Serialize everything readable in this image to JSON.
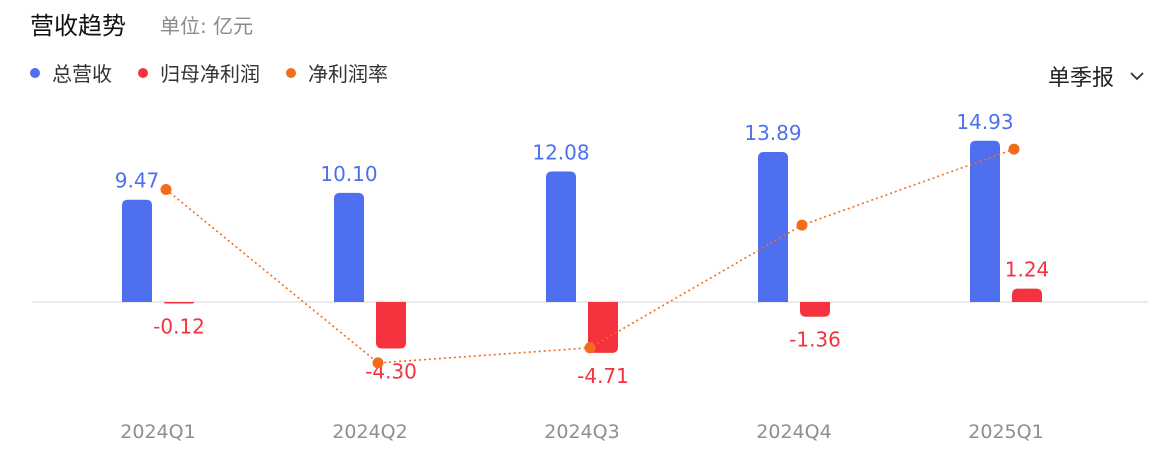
{
  "header": {
    "title": "营收趋势",
    "unit": "单位: 亿元"
  },
  "period_selector": {
    "label": "单季报"
  },
  "colors": {
    "revenue": "#4d6ff0",
    "net_profit": "#f5333f",
    "margin": "#f36c1b",
    "axis": "#e3e3e3",
    "tick": "#8f8f8f"
  },
  "chart_data": {
    "type": "bar",
    "categories": [
      "2024Q1",
      "2024Q2",
      "2024Q3",
      "2024Q4",
      "2025Q1"
    ],
    "series": [
      {
        "name": "总营收",
        "type": "bar",
        "values": [
          9.47,
          10.1,
          12.08,
          13.89,
          14.93
        ],
        "labels": [
          "9.47",
          "10.10",
          "12.08",
          "13.89",
          "14.93"
        ]
      },
      {
        "name": "归母净利润",
        "type": "bar",
        "values": [
          -0.12,
          -4.3,
          -4.71,
          -1.36,
          1.24
        ],
        "labels": [
          "-0.12",
          "-4.30",
          "-4.71",
          "-1.36",
          "1.24"
        ]
      },
      {
        "name": "净利润率",
        "type": "line",
        "values": [
          -1.3,
          -42.6,
          -39.0,
          -9.8,
          8.3
        ]
      }
    ],
    "legend_position": "top-left"
  }
}
